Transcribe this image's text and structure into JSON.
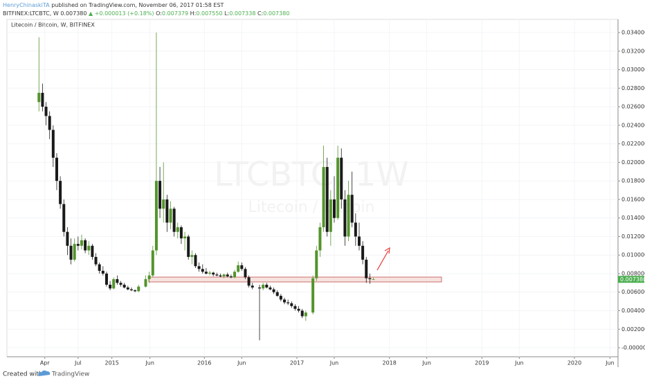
{
  "header": {
    "author": "HenryChinaskiTA",
    "published": "published on TradingView.com, November 06, 2017 01:58 EST",
    "symbol": "BITFINEX:LTCBTC, W",
    "price": "0.007380",
    "change": "▲ +0.000013 (+0.18%)",
    "o_label": "O:",
    "o": "0.007379",
    "h_label": "H:",
    "h": "0.007550",
    "l_label": "L:",
    "l": "0.007338",
    "c_label": "C:",
    "c": "0.007380"
  },
  "footer": {
    "created": "Created with",
    "brand": "TradingView"
  },
  "chart_data": {
    "type": "candlestick",
    "title": "Litecoin / Bitcoin, W, BITFINEX",
    "watermark": "LTCBTC, 1W",
    "watermark_sub": "Litecoin / Bitcoin",
    "up_color": "#53942b",
    "down_color": "#1a1a1a",
    "grid": true,
    "x": [
      -41,
      -39,
      -37,
      -35,
      -33,
      -31,
      -29,
      -27,
      -25,
      -23,
      -21,
      -19,
      -17,
      -15,
      -13,
      -11,
      -9,
      -7,
      -5,
      -3,
      -1,
      1,
      3,
      5,
      7,
      9,
      11,
      13,
      15,
      19,
      21,
      23,
      25,
      27,
      29,
      31,
      33,
      35,
      37,
      39,
      41,
      43,
      45,
      47,
      49,
      51,
      53,
      55,
      57,
      59,
      61,
      63,
      65,
      67,
      69,
      71,
      73,
      75,
      77,
      79,
      83,
      85,
      87,
      89,
      91,
      93,
      95,
      97,
      99,
      101,
      103,
      105,
      107,
      109,
      113,
      115,
      117,
      119,
      121,
      123,
      125,
      127,
      129,
      131,
      133,
      135,
      137,
      139,
      141,
      143,
      145,
      147
    ],
    "open": [
      0.0265,
      0.0275,
      0.026,
      0.025,
      0.0235,
      0.0205,
      0.018,
      0.0155,
      0.0125,
      0.011,
      0.0095,
      0.0112,
      0.011,
      0.0116,
      0.0105,
      0.011,
      0.0098,
      0.009,
      0.0083,
      0.008,
      0.0068,
      0.0064,
      0.0074,
      0.007,
      0.0068,
      0.0065,
      0.0063,
      0.0062,
      0.0061,
      0.0066,
      0.0074,
      0.0078,
      0.0105,
      0.018,
      0.015,
      0.016,
      0.0135,
      0.015,
      0.0125,
      0.013,
      0.0118,
      0.012,
      0.0098,
      0.01,
      0.0088,
      0.0085,
      0.0082,
      0.008,
      0.0081,
      0.0079,
      0.0078,
      0.0077,
      0.0079,
      0.0077,
      0.0076,
      0.0082,
      0.0089,
      0.0085,
      0.0076,
      0.0067,
      0.0065,
      0.0064,
      0.0068,
      0.0065,
      0.0063,
      0.006,
      0.0056,
      0.0052,
      0.0049,
      0.0048,
      0.0045,
      0.0042,
      0.004,
      0.0034,
      0.0038,
      0.0075,
      0.0105,
      0.013,
      0.0195,
      0.0125,
      0.016,
      0.014,
      0.0205,
      0.016,
      0.012,
      0.0165,
      0.0135,
      0.012,
      0.011,
      0.0095,
      0.0075,
      0.007379
    ],
    "high": [
      0.0335,
      0.0285,
      0.0265,
      0.0255,
      0.024,
      0.021,
      0.0185,
      0.016,
      0.013,
      0.0118,
      0.0118,
      0.012,
      0.0122,
      0.0118,
      0.0115,
      0.0112,
      0.0102,
      0.0092,
      0.0088,
      0.0082,
      0.0072,
      0.0076,
      0.0078,
      0.0072,
      0.007,
      0.0067,
      0.0065,
      0.0063,
      0.0068,
      0.0078,
      0.0082,
      0.011,
      0.034,
      0.0195,
      0.02,
      0.0165,
      0.0158,
      0.0152,
      0.0135,
      0.0132,
      0.0125,
      0.0122,
      0.0105,
      0.0102,
      0.0092,
      0.009,
      0.0086,
      0.0083,
      0.0082,
      0.0081,
      0.008,
      0.008,
      0.0081,
      0.0079,
      0.0084,
      0.0093,
      0.0092,
      0.0087,
      0.0078,
      0.007,
      0.0068,
      0.007,
      0.007,
      0.0067,
      0.0065,
      0.0062,
      0.0058,
      0.0054,
      0.0052,
      0.005,
      0.0047,
      0.0045,
      0.0042,
      0.004,
      0.0078,
      0.011,
      0.0135,
      0.0218,
      0.0205,
      0.017,
      0.0185,
      0.0218,
      0.0215,
      0.017,
      0.018,
      0.019,
      0.0145,
      0.0135,
      0.0115,
      0.0098,
      0.008,
      0.00755
    ],
    "low": [
      0.0255,
      0.0255,
      0.024,
      0.0225,
      0.0195,
      0.017,
      0.015,
      0.012,
      0.01,
      0.009,
      0.0093,
      0.0105,
      0.0106,
      0.0102,
      0.01,
      0.0095,
      0.0088,
      0.008,
      0.0078,
      0.0066,
      0.0062,
      0.0063,
      0.0068,
      0.0066,
      0.0064,
      0.0062,
      0.0061,
      0.006,
      0.006,
      0.0065,
      0.007,
      0.0076,
      0.01,
      0.014,
      0.0135,
      0.0125,
      0.0128,
      0.012,
      0.0118,
      0.0112,
      0.0105,
      0.0095,
      0.009,
      0.0086,
      0.0082,
      0.008,
      0.0079,
      0.0078,
      0.0077,
      0.0077,
      0.0076,
      0.0075,
      0.0076,
      0.0075,
      0.0075,
      0.0081,
      0.0083,
      0.0074,
      0.0065,
      0.0063,
      0.0008,
      0.0062,
      0.0064,
      0.0062,
      0.0058,
      0.0055,
      0.005,
      0.0047,
      0.0046,
      0.0043,
      0.004,
      0.0038,
      0.0032,
      0.0029,
      0.0036,
      0.0072,
      0.0098,
      0.0125,
      0.012,
      0.011,
      0.0135,
      0.0138,
      0.015,
      0.011,
      0.0115,
      0.013,
      0.011,
      0.0105,
      0.009,
      0.007,
      0.0069,
      0.007338
    ],
    "close": [
      0.0275,
      0.026,
      0.025,
      0.0235,
      0.0205,
      0.018,
      0.0155,
      0.0125,
      0.011,
      0.0095,
      0.0112,
      0.011,
      0.0116,
      0.0105,
      0.011,
      0.0098,
      0.009,
      0.0083,
      0.008,
      0.0068,
      0.0064,
      0.0074,
      0.007,
      0.0068,
      0.0065,
      0.0063,
      0.0062,
      0.0061,
      0.0066,
      0.0074,
      0.0078,
      0.0105,
      0.018,
      0.015,
      0.016,
      0.0135,
      0.015,
      0.0125,
      0.013,
      0.0118,
      0.012,
      0.0098,
      0.01,
      0.0088,
      0.0085,
      0.0082,
      0.008,
      0.0081,
      0.0079,
      0.0078,
      0.0077,
      0.0079,
      0.0077,
      0.0076,
      0.0082,
      0.0089,
      0.0085,
      0.0076,
      0.0067,
      0.0065,
      0.0064,
      0.0068,
      0.0065,
      0.0063,
      0.006,
      0.0056,
      0.0052,
      0.0049,
      0.0048,
      0.0045,
      0.0042,
      0.004,
      0.0034,
      0.0038,
      0.0075,
      0.0105,
      0.013,
      0.0195,
      0.0125,
      0.016,
      0.014,
      0.0205,
      0.016,
      0.012,
      0.0165,
      0.0135,
      0.012,
      0.011,
      0.0095,
      0.0075,
      0.0074,
      0.00738
    ],
    "last_price": {
      "value": 0.00738,
      "label": "0.007380"
    },
    "xlim": [
      -59,
      284.5
    ],
    "xticks": [
      {
        "value": -37.7,
        "label": "Apr"
      },
      {
        "value": -19,
        "label": "Jul"
      },
      {
        "value": 0,
        "label": "2015"
      },
      {
        "value": 21.4,
        "label": "Jun"
      },
      {
        "value": 52,
        "label": "2016"
      },
      {
        "value": 73,
        "label": "Jun"
      },
      {
        "value": 104,
        "label": "2017"
      },
      {
        "value": 125,
        "label": "Jun"
      },
      {
        "value": 156,
        "label": "2018"
      },
      {
        "value": 177,
        "label": "Jun"
      },
      {
        "value": 208,
        "label": "2019"
      },
      {
        "value": 229,
        "label": "Jun"
      },
      {
        "value": 260,
        "label": "2020"
      },
      {
        "value": 280,
        "label": "Jun"
      }
    ],
    "ylim": [
      -0.00097,
      0.03542
    ],
    "yticks": [
      {
        "value": 0,
        "label": "-0.000000"
      },
      {
        "value": 0.002,
        "label": "0.002000"
      },
      {
        "value": 0.004,
        "label": "0.004000"
      },
      {
        "value": 0.006,
        "label": "0.006000"
      },
      {
        "value": 0.008,
        "label": "0.008000"
      },
      {
        "value": 0.01,
        "label": "0.010000"
      },
      {
        "value": 0.012,
        "label": "0.012000"
      },
      {
        "value": 0.014,
        "label": "0.014000"
      },
      {
        "value": 0.016,
        "label": "0.016000"
      },
      {
        "value": 0.018,
        "label": "0.018000"
      },
      {
        "value": 0.02,
        "label": "0.020000"
      },
      {
        "value": 0.022,
        "label": "0.022000"
      },
      {
        "value": 0.024,
        "label": "0.024000"
      },
      {
        "value": 0.026,
        "label": "0.026000"
      },
      {
        "value": 0.028,
        "label": "0.028000"
      },
      {
        "value": 0.03,
        "label": "0.030000"
      },
      {
        "value": 0.032,
        "label": "0.032000"
      },
      {
        "value": 0.034,
        "label": "0.034000"
      }
    ]
  }
}
